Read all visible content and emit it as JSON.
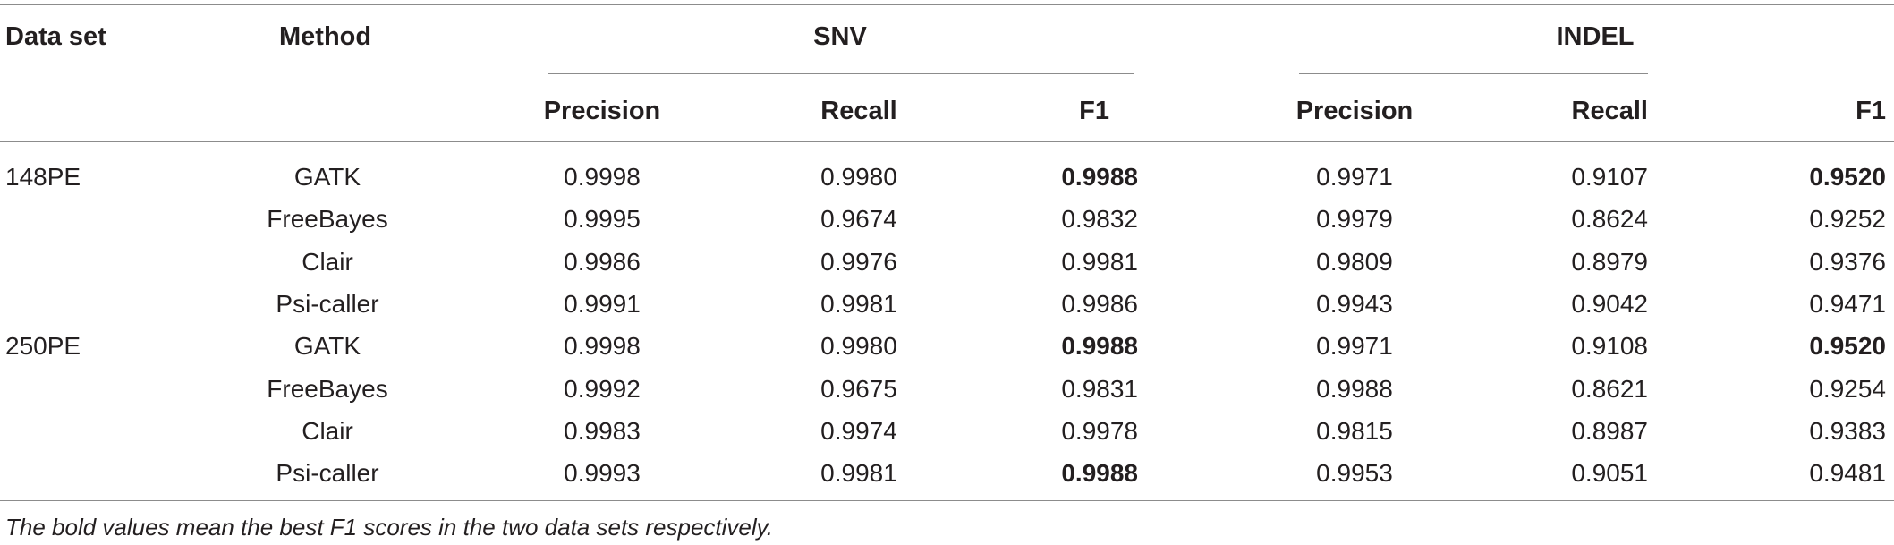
{
  "table": {
    "headers": {
      "dataset": "Data set",
      "method": "Method",
      "snv": "SNV",
      "indel": "INDEL",
      "snv_precision": "Precision",
      "snv_recall": "Recall",
      "snv_f1": "F1",
      "indel_precision": "Precision",
      "indel_recall": "Recall",
      "indel_f1": "F1"
    },
    "rows": [
      {
        "dataset": "148PE",
        "method": "GATK",
        "snv_precision": "0.9998",
        "snv_recall": "0.9980",
        "snv_f1": "0.9988",
        "indel_precision": "0.9971",
        "indel_recall": "0.9107",
        "indel_f1": "0.9520",
        "snv_f1_bold": true,
        "indel_f1_bold": true
      },
      {
        "dataset": "",
        "method": "FreeBayes",
        "snv_precision": "0.9995",
        "snv_recall": "0.9674",
        "snv_f1": "0.9832",
        "indel_precision": "0.9979",
        "indel_recall": "0.8624",
        "indel_f1": "0.9252",
        "snv_f1_bold": false,
        "indel_f1_bold": false
      },
      {
        "dataset": "",
        "method": "Clair",
        "snv_precision": "0.9986",
        "snv_recall": "0.9976",
        "snv_f1": "0.9981",
        "indel_precision": "0.9809",
        "indel_recall": "0.8979",
        "indel_f1": "0.9376",
        "snv_f1_bold": false,
        "indel_f1_bold": false
      },
      {
        "dataset": "",
        "method": "Psi-caller",
        "snv_precision": "0.9991",
        "snv_recall": "0.9981",
        "snv_f1": "0.9986",
        "indel_precision": "0.9943",
        "indel_recall": "0.9042",
        "indel_f1": "0.9471",
        "snv_f1_bold": false,
        "indel_f1_bold": false
      },
      {
        "dataset": "250PE",
        "method": "GATK",
        "snv_precision": "0.9998",
        "snv_recall": "0.9980",
        "snv_f1": "0.9988",
        "indel_precision": "0.9971",
        "indel_recall": "0.9108",
        "indel_f1": "0.9520",
        "snv_f1_bold": true,
        "indel_f1_bold": true
      },
      {
        "dataset": "",
        "method": "FreeBayes",
        "snv_precision": "0.9992",
        "snv_recall": "0.9675",
        "snv_f1": "0.9831",
        "indel_precision": "0.9988",
        "indel_recall": "0.8621",
        "indel_f1": "0.9254",
        "snv_f1_bold": false,
        "indel_f1_bold": false
      },
      {
        "dataset": "",
        "method": "Clair",
        "snv_precision": "0.9983",
        "snv_recall": "0.9974",
        "snv_f1": "0.9978",
        "indel_precision": "0.9815",
        "indel_recall": "0.8987",
        "indel_f1": "0.9383",
        "snv_f1_bold": false,
        "indel_f1_bold": false
      },
      {
        "dataset": "",
        "method": "Psi-caller",
        "snv_precision": "0.9993",
        "snv_recall": "0.9981",
        "snv_f1": "0.9988",
        "indel_precision": "0.9953",
        "indel_recall": "0.9051",
        "indel_f1": "0.9481",
        "snv_f1_bold": true,
        "indel_f1_bold": false
      }
    ]
  },
  "footnote": "The bold values mean the best F1 scores in the two data sets respectively."
}
